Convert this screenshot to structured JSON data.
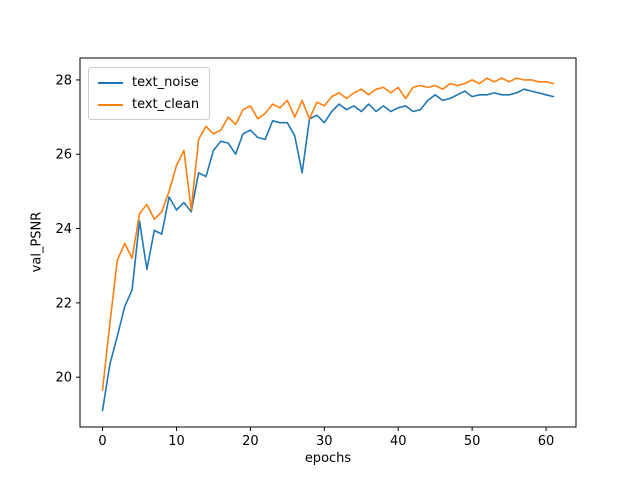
{
  "chart_data": {
    "type": "line",
    "title": "",
    "xlabel": "epochs",
    "ylabel": "val_PSNR",
    "xlim": [
      -3.05,
      64.05
    ],
    "ylim": [
      18.66,
      28.59
    ],
    "xticks": [
      0,
      10,
      20,
      30,
      40,
      50,
      60
    ],
    "yticks": [
      20,
      22,
      24,
      26,
      28
    ],
    "grid": false,
    "legend_position": "upper left",
    "x": [
      0,
      1,
      2,
      3,
      4,
      5,
      6,
      7,
      8,
      9,
      10,
      11,
      12,
      13,
      14,
      15,
      16,
      17,
      18,
      19,
      20,
      21,
      22,
      23,
      24,
      25,
      26,
      27,
      28,
      29,
      30,
      31,
      32,
      33,
      34,
      35,
      36,
      37,
      38,
      39,
      40,
      41,
      42,
      43,
      44,
      45,
      46,
      47,
      48,
      49,
      50,
      51,
      52,
      53,
      54,
      55,
      56,
      57,
      58,
      59,
      60,
      61
    ],
    "series": [
      {
        "name": "text_noise",
        "color": "#1f77b4",
        "values": [
          19.1,
          20.35,
          21.1,
          21.9,
          22.35,
          24.2,
          22.9,
          23.95,
          23.85,
          24.85,
          24.5,
          24.7,
          24.45,
          25.5,
          25.4,
          26.1,
          26.35,
          26.3,
          26.0,
          26.55,
          26.65,
          26.45,
          26.4,
          26.9,
          26.85,
          26.85,
          26.5,
          25.5,
          26.95,
          27.05,
          26.85,
          27.15,
          27.35,
          27.2,
          27.3,
          27.15,
          27.35,
          27.15,
          27.3,
          27.15,
          27.25,
          27.3,
          27.15,
          27.2,
          27.45,
          27.6,
          27.45,
          27.5,
          27.6,
          27.7,
          27.55,
          27.6,
          27.6,
          27.65,
          27.6,
          27.6,
          27.65,
          27.75,
          27.7,
          27.65,
          27.6,
          27.55
        ]
      },
      {
        "name": "text_clean",
        "color": "#ff7f0e",
        "values": [
          19.65,
          21.45,
          23.15,
          23.6,
          23.2,
          24.4,
          24.65,
          24.25,
          24.45,
          25.0,
          25.7,
          26.1,
          24.5,
          26.4,
          26.75,
          26.55,
          26.65,
          27.0,
          26.8,
          27.2,
          27.3,
          26.95,
          27.1,
          27.35,
          27.25,
          27.45,
          27.0,
          27.45,
          26.95,
          27.4,
          27.3,
          27.55,
          27.65,
          27.5,
          27.65,
          27.75,
          27.6,
          27.75,
          27.8,
          27.65,
          27.8,
          27.5,
          27.8,
          27.85,
          27.8,
          27.85,
          27.75,
          27.9,
          27.85,
          27.9,
          28.0,
          27.9,
          28.05,
          27.95,
          28.05,
          27.95,
          28.05,
          28.0,
          28.0,
          27.95,
          27.95,
          27.9
        ]
      }
    ]
  },
  "legend": {
    "items": [
      {
        "label": "text_noise",
        "color": "#1f77b4"
      },
      {
        "label": "text_clean",
        "color": "#ff7f0e"
      }
    ]
  },
  "colors": {
    "background": "#ffffff",
    "spine": "#000000",
    "tick_label": "#000000",
    "legend_border": "#cccccc"
  }
}
